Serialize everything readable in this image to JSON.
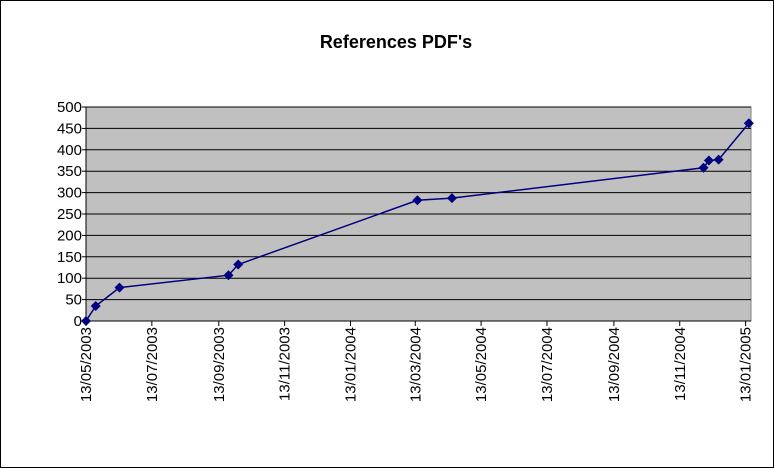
{
  "chart_data": {
    "type": "line",
    "title": "References PDF's",
    "x": [
      "2003-05-13",
      "2003-05-22",
      "2003-06-13",
      "2003-09-22",
      "2003-10-01",
      "2004-03-15",
      "2004-04-16",
      "2004-12-05",
      "2004-12-10",
      "2004-12-19",
      "2005-01-16"
    ],
    "values": [
      0,
      35,
      78,
      107,
      132,
      282,
      287,
      358,
      375,
      377,
      462
    ],
    "color": "#000080",
    "xlim": [
      "2003-05-13",
      "2005-01-18"
    ],
    "xticks": [
      {
        "value": "2003-05-13",
        "label": "13/05/2003"
      },
      {
        "value": "2003-07-13",
        "label": "13/07/2003"
      },
      {
        "value": "2003-09-13",
        "label": "13/09/2003"
      },
      {
        "value": "2003-11-13",
        "label": "13/11/2003"
      },
      {
        "value": "2004-01-13",
        "label": "13/01/2004"
      },
      {
        "value": "2004-03-13",
        "label": "13/03/2004"
      },
      {
        "value": "2004-05-13",
        "label": "13/05/2004"
      },
      {
        "value": "2004-07-13",
        "label": "13/07/2004"
      },
      {
        "value": "2004-09-13",
        "label": "13/09/2004"
      },
      {
        "value": "2004-11-13",
        "label": "13/11/2004"
      },
      {
        "value": "2005-01-13",
        "label": "13/01/2005"
      }
    ],
    "ylim": [
      0,
      500
    ],
    "yticks": [
      0,
      50,
      100,
      150,
      200,
      250,
      300,
      350,
      400,
      450,
      500
    ],
    "grid": true
  }
}
